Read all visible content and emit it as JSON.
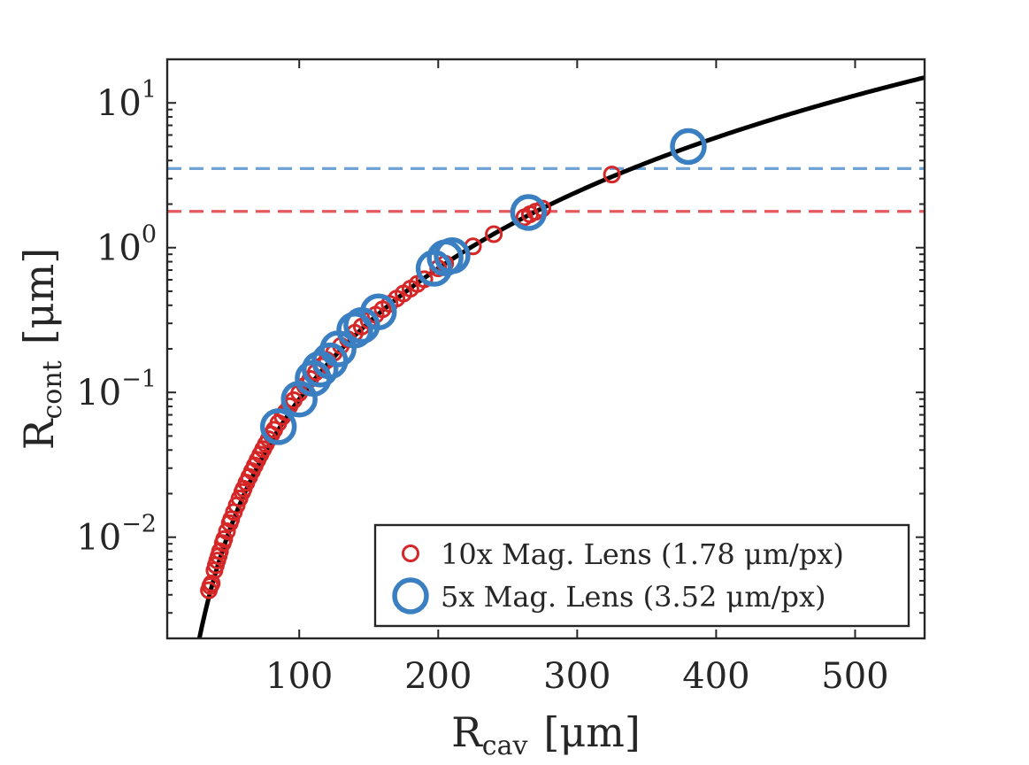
{
  "chart_data": {
    "type": "scatter",
    "xlabel": {
      "main": "R",
      "sub": "cav",
      "unit": "[μm]"
    },
    "ylabel": {
      "main": "R",
      "sub": "cont",
      "unit": "[μm]"
    },
    "xlim": [
      5,
      550
    ],
    "ylim": [
      0.002,
      20
    ],
    "yscale": "log",
    "x_ticks": [
      {
        "value": 100,
        "label": "100"
      },
      {
        "value": 200,
        "label": "200"
      },
      {
        "value": 300,
        "label": "300"
      },
      {
        "value": 400,
        "label": "400"
      },
      {
        "value": 500,
        "label": "500"
      }
    ],
    "y_ticks": [
      {
        "value": 0.01,
        "base": "10",
        "exp": "−2"
      },
      {
        "value": 0.1,
        "base": "10",
        "exp": "−1"
      },
      {
        "value": 1,
        "base": "10",
        "exp": "0"
      },
      {
        "value": 10,
        "base": "10",
        "exp": "1"
      }
    ],
    "fit_curve": {
      "name": "fit",
      "color": "#000000",
      "k": 9e-08,
      "p": 3
    },
    "reference_lines": [
      {
        "name": "5x pixel size",
        "y": 3.52,
        "color": "#6fa3d6",
        "style": "dashed"
      },
      {
        "name": "10x pixel size",
        "y": 1.78,
        "color": "#e5595e",
        "style": "dashed"
      }
    ],
    "series": [
      {
        "name": "10x Mag. Lens (1.78 μm/px)",
        "legend_label": "10x Mag. Lens (1.78 μm/px)",
        "color": "#d62728",
        "marker": "circle-small",
        "x": [
          35,
          36,
          37,
          39,
          40,
          41,
          42,
          43,
          45,
          46,
          48,
          50,
          51,
          53,
          55,
          57,
          59,
          60,
          62,
          64,
          66,
          68,
          70,
          72,
          74,
          76,
          78,
          80,
          82,
          85,
          88,
          90,
          93,
          96,
          100,
          104,
          108,
          112,
          116,
          120,
          125,
          130,
          135,
          140,
          145,
          150,
          155,
          160,
          165,
          170,
          175,
          180,
          185,
          190,
          200,
          205,
          225,
          240,
          262,
          266,
          270,
          275,
          325
        ],
        "y": [
          0.0043,
          0.0046,
          0.0048,
          0.0059,
          0.0064,
          0.0069,
          0.0074,
          0.008,
          0.0091,
          0.0097,
          0.011,
          0.0125,
          0.0133,
          0.0149,
          0.0166,
          0.0185,
          0.0205,
          0.0216,
          0.0238,
          0.0261,
          0.0286,
          0.0313,
          0.0342,
          0.0372,
          0.0405,
          0.0439,
          0.0475,
          0.0512,
          0.0552,
          0.0615,
          0.0681,
          0.0729,
          0.0804,
          0.0884,
          0.099,
          0.111,
          0.124,
          0.138,
          0.152,
          0.167,
          0.188,
          0.21,
          0.233,
          0.258,
          0.285,
          0.314,
          0.344,
          0.375,
          0.409,
          0.445,
          0.482,
          0.521,
          0.562,
          0.605,
          0.72,
          0.775,
          1.02,
          1.24,
          1.62,
          1.7,
          1.77,
          1.86,
          3.2
        ]
      },
      {
        "name": "5x Mag. Lens (3.52 μm/px)",
        "legend_label": "5x Mag. Lens  (3.52 μm/px)",
        "color": "#3a7fc1",
        "marker": "circle-large",
        "x": [
          85,
          100,
          110,
          115,
          122,
          128,
          140,
          145,
          157,
          197,
          205,
          210,
          265,
          380
        ],
        "y": [
          0.058,
          0.09,
          0.125,
          0.145,
          0.165,
          0.2,
          0.27,
          0.29,
          0.36,
          0.72,
          0.85,
          0.88,
          1.75,
          5.0
        ]
      }
    ],
    "legend": {
      "location": "bottom-right"
    }
  }
}
